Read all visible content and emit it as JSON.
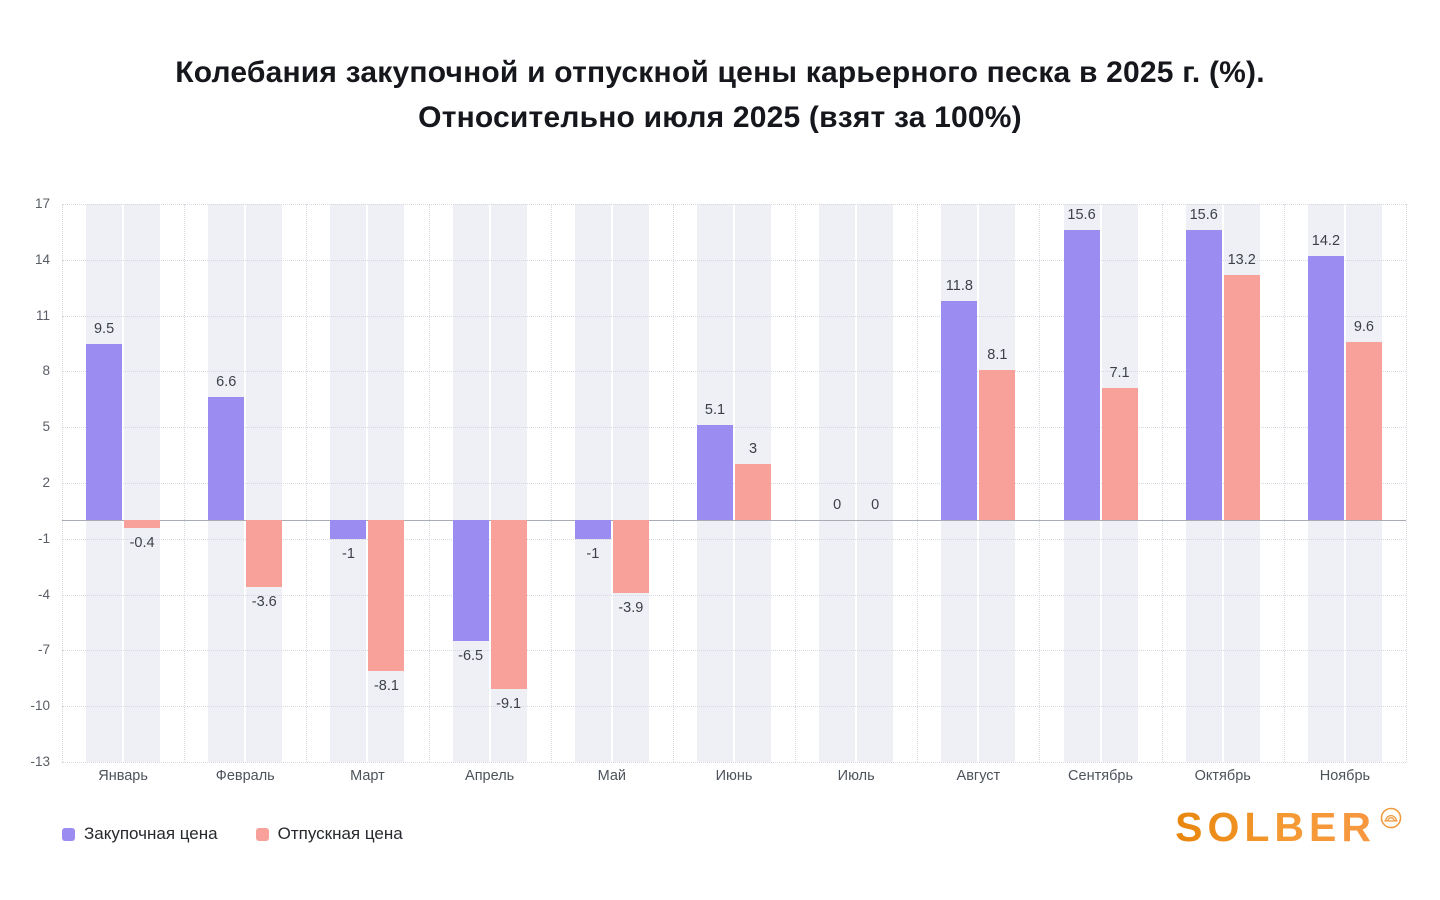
{
  "title": {
    "line1": "Колебания закупочной и отпускной цены карьерного песка в 2025 г. (%).",
    "line2": "Относительно июля 2025 (взят за 100%)"
  },
  "chart_data": {
    "type": "bar",
    "categories": [
      "Январь",
      "Февраль",
      "Март",
      "Апрель",
      "Май",
      "Июнь",
      "Июль",
      "Август",
      "Сентябрь",
      "Октябрь",
      "Ноябрь"
    ],
    "series": [
      {
        "name": "Закупочная цена",
        "color": "#9b8cf2",
        "values": [
          9.5,
          6.6,
          -1,
          -6.5,
          -1,
          5.1,
          0,
          11.8,
          15.6,
          15.6,
          14.2
        ]
      },
      {
        "name": "Отпускная цена",
        "color": "#f8a19b",
        "values": [
          -0.4,
          -3.6,
          -8.1,
          -9.1,
          -3.9,
          3,
          0,
          8.1,
          7.1,
          13.2,
          9.6
        ]
      }
    ],
    "y_ticks": [
      17,
      14,
      11,
      8,
      5,
      2,
      -1,
      -4,
      -7,
      -10,
      -13
    ],
    "ylim": [
      -13,
      17
    ],
    "grid": true,
    "band_background": "#eef0f5",
    "legend_position": "bottom-left"
  },
  "logo": {
    "text": "SOLBER"
  }
}
